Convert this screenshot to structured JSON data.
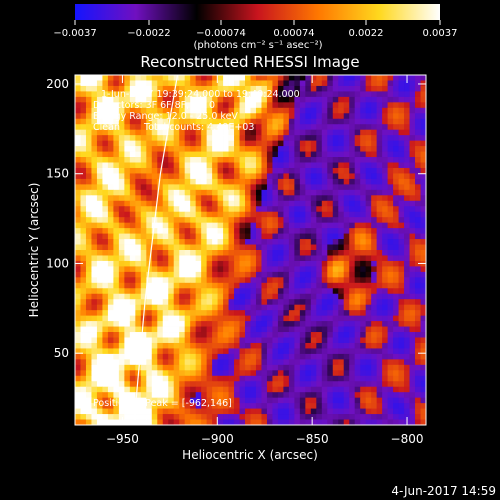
{
  "chart_data": {
    "type": "heatmap",
    "title": "Reconstructed RHESSI Image",
    "xlabel": "Heliocentric X (arcsec)",
    "ylabel": "Heliocentric Y (arcsec)",
    "xlim": [
      -975,
      -790
    ],
    "ylim": [
      10,
      205
    ],
    "xticks": [
      -950,
      -900,
      -850,
      -800
    ],
    "xtick_labels": [
      "−950",
      "−900",
      "−850",
      "−800"
    ],
    "yticks": [
      50,
      100,
      150,
      200
    ],
    "ytick_labels": [
      "50",
      "100",
      "150",
      "200"
    ],
    "colorbar": {
      "range": [
        -0.0037,
        0.0037
      ],
      "ticks": [
        -0.0037,
        -0.0022,
        -0.00074,
        0.00074,
        0.0022,
        0.0037
      ],
      "tick_labels": [
        "−0.0037",
        "−0.0022",
        "−0.00074",
        "0.00074",
        "0.0022",
        "0.0037"
      ],
      "unit_label": "(photons cm⁻² s⁻¹ asec⁻²)",
      "colors": [
        "#1414ff",
        "#7010c0",
        "#000000",
        "#c8141e",
        "#ff7800",
        "#ffd81e",
        "#ffffff"
      ]
    },
    "annotations": [
      "1-Jun-2017 19:39:24.000 to 19:49:24.000",
      "Detectors: 3F 6F 8F, Att 0",
      "Energy Range: 12.0 - 25.0 keV",
      "Clean",
      "Total counts: 4.40E+03",
      "Position of Peak = [-962,146]"
    ],
    "peak": {
      "x": -962,
      "y": 146
    },
    "limb": [
      [
        -944,
        10
      ],
      [
        -938,
        80
      ],
      [
        -930,
        150
      ],
      [
        -921,
        205
      ]
    ]
  },
  "footer": {
    "timestamp": "4-Jun-2017 14:59"
  }
}
